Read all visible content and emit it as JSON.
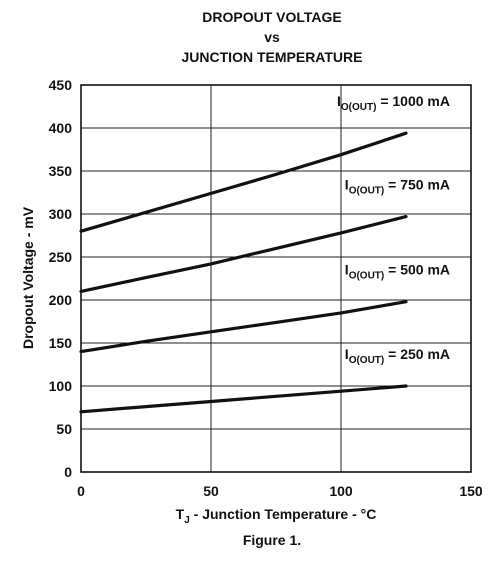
{
  "chart_data": {
    "type": "line",
    "title_lines": [
      "DROPOUT VOLTAGE",
      "vs",
      "JUNCTION TEMPERATURE"
    ],
    "xlabel": {
      "main": "T",
      "sub": "J",
      "rest": " - Junction Temperature - °C"
    },
    "ylabel": "Dropout Voltage - mV",
    "caption": "Figure 1.",
    "xlim": [
      0,
      150
    ],
    "ylim": [
      0,
      450
    ],
    "x_ticks": [
      0,
      50,
      100,
      150
    ],
    "y_ticks": [
      0,
      50,
      100,
      150,
      200,
      250,
      300,
      350,
      400,
      450
    ],
    "grid": true,
    "series": [
      {
        "label_main": "I",
        "label_sub": "O(OUT)",
        "label_rest": " = 1000 mA",
        "x": [
          0,
          25,
          50,
          75,
          100,
          125
        ],
        "values": [
          280,
          302,
          324,
          346,
          369,
          394
        ]
      },
      {
        "label_main": "I",
        "label_sub": "O(OUT)",
        "label_rest": " = 750 mA",
        "x": [
          0,
          25,
          50,
          75,
          100,
          125
        ],
        "values": [
          210,
          226,
          242,
          260,
          278,
          297
        ]
      },
      {
        "label_main": "I",
        "label_sub": "O(OUT)",
        "label_rest": " = 500 mA",
        "x": [
          0,
          25,
          50,
          75,
          100,
          125
        ],
        "values": [
          140,
          152,
          163,
          174,
          185,
          198
        ]
      },
      {
        "label_main": "I",
        "label_sub": "O(OUT)",
        "label_rest": " = 250 mA",
        "x": [
          0,
          25,
          50,
          75,
          100,
          125
        ],
        "values": [
          70,
          76,
          82,
          88,
          94,
          100
        ]
      }
    ]
  }
}
